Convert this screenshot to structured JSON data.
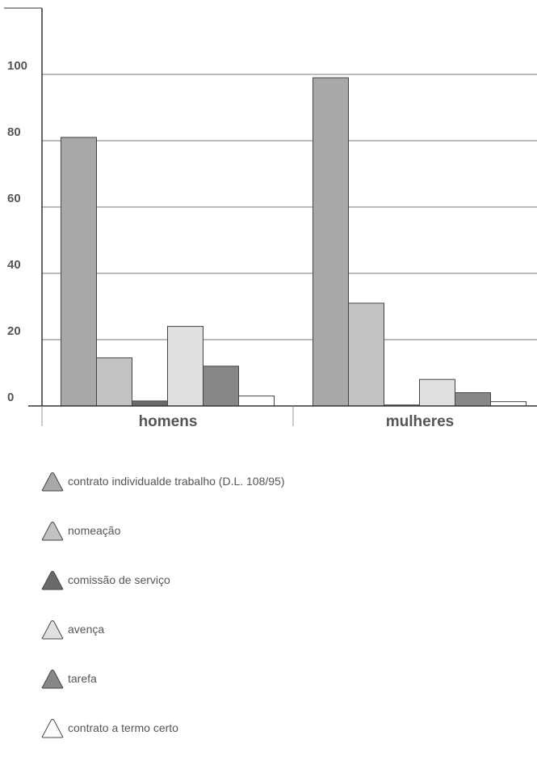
{
  "chart_data": {
    "type": "bar",
    "title": "",
    "xlabel": "",
    "ylabel": "",
    "ylim": [
      0,
      120
    ],
    "yticks": [
      0,
      20,
      40,
      60,
      80,
      100
    ],
    "grid": true,
    "legend_placement": "bottom",
    "categories": [
      "homens",
      "mulheres"
    ],
    "series": [
      {
        "name": "contrato individualde trabalho (D.L. 108/95)",
        "values": [
          81,
          99
        ],
        "color": "#a8a8a8"
      },
      {
        "name": "nomeação",
        "values": [
          14.5,
          31
        ],
        "color": "#c2c2c2"
      },
      {
        "name": "comissão de serviço",
        "values": [
          1.5,
          0.3
        ],
        "color": "#6a6a6a"
      },
      {
        "name": "avença",
        "values": [
          24,
          8
        ],
        "color": "#e0e0e0"
      },
      {
        "name": "tarefa",
        "values": [
          12,
          4
        ],
        "color": "#878787"
      },
      {
        "name": "contrato a termo certo",
        "values": [
          3,
          1.3
        ],
        "color": "#ffffff"
      }
    ]
  }
}
